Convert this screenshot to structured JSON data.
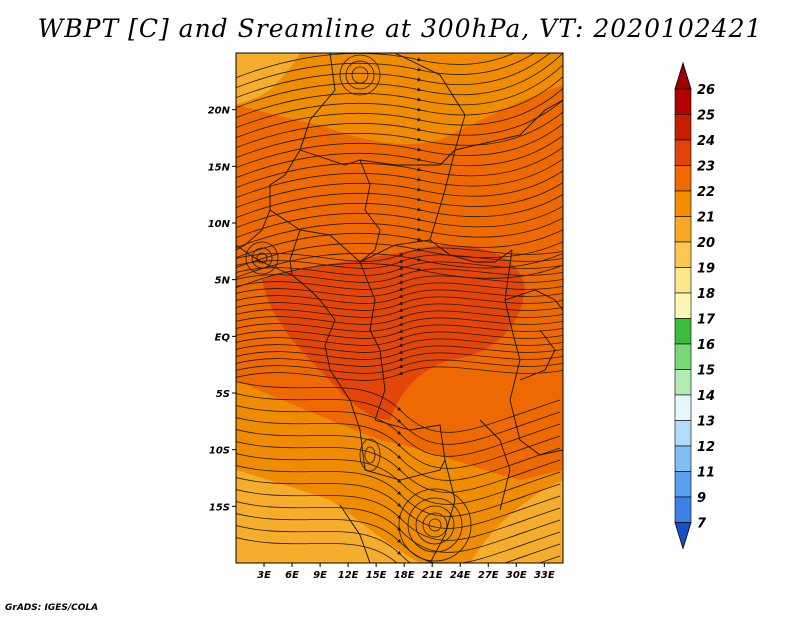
{
  "title": "WBPT [C] and Sreamline at 300hPa, VT: 2020102421",
  "credit": "GrADS: IGES/COLA",
  "map": {
    "lon_range": [
      0,
      35
    ],
    "lat_range": [
      -20,
      25
    ],
    "lat_ticks": [
      {
        "value": 20,
        "label": "20N"
      },
      {
        "value": 15,
        "label": "15N"
      },
      {
        "value": 10,
        "label": "10N"
      },
      {
        "value": 5,
        "label": "5N"
      },
      {
        "value": 0,
        "label": "EQ"
      },
      {
        "value": -5,
        "label": "5S"
      },
      {
        "value": -10,
        "label": "10S"
      },
      {
        "value": -15,
        "label": "15S"
      }
    ],
    "lon_ticks": [
      {
        "value": 3,
        "label": "3E"
      },
      {
        "value": 6,
        "label": "6E"
      },
      {
        "value": 9,
        "label": "9E"
      },
      {
        "value": 12,
        "label": "12E"
      },
      {
        "value": 15,
        "label": "15E"
      },
      {
        "value": 18,
        "label": "18E"
      },
      {
        "value": 21,
        "label": "21E"
      },
      {
        "value": 24,
        "label": "24E"
      },
      {
        "value": 27,
        "label": "27E"
      },
      {
        "value": 30,
        "label": "30E"
      },
      {
        "value": 33,
        "label": "33E"
      }
    ],
    "background_color": "#ee6a00",
    "shaded_regions": [
      {
        "color": "#f09000",
        "name": "wbpt-22-region-north"
      },
      {
        "color": "#f09000",
        "name": "wbpt-22-region-south"
      },
      {
        "color": "#f6b030",
        "name": "wbpt-21-region-southwest"
      },
      {
        "color": "#f6b030",
        "name": "wbpt-21-region-southeast"
      },
      {
        "color": "#f6b030",
        "name": "wbpt-21-region-northwest"
      },
      {
        "color": "#e2430a",
        "name": "wbpt-24-region-center"
      }
    ]
  },
  "colorbar": {
    "levels": [
      {
        "label": "26",
        "color": "#b40000"
      },
      {
        "label": "25",
        "color": "#c81e00"
      },
      {
        "label": "24",
        "color": "#e2430a"
      },
      {
        "label": "23",
        "color": "#ee6a00"
      },
      {
        "label": "22",
        "color": "#f48c00"
      },
      {
        "label": "21",
        "color": "#f8a820"
      },
      {
        "label": "20",
        "color": "#fac850"
      },
      {
        "label": "19",
        "color": "#fde68c"
      },
      {
        "label": "18",
        "color": "#fdf6b4"
      },
      {
        "label": "17",
        "color": "#3cbc3c"
      },
      {
        "label": "16",
        "color": "#78d878"
      },
      {
        "label": "15",
        "color": "#b4eab4"
      },
      {
        "label": "14",
        "color": "#e6f8ff"
      },
      {
        "label": "13",
        "color": "#b4dcfa"
      },
      {
        "label": "12",
        "color": "#82bef5"
      },
      {
        "label": "11",
        "color": "#5aa0f0"
      },
      {
        "label": "9",
        "color": "#3c82e6"
      },
      {
        "label": "7",
        "color": "#1e64dc"
      }
    ],
    "top_arrow_color": "#a00000",
    "bottom_arrow_color": "#1450c8"
  }
}
